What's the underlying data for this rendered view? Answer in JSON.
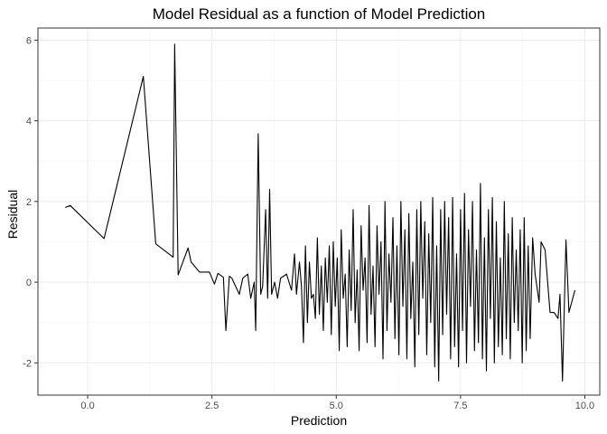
{
  "chart_data": {
    "type": "line",
    "title": "Model Residual as a function of Model Prediction",
    "xlabel": "Prediction",
    "ylabel": "Residual",
    "xlim": [
      -1.0,
      10.3
    ],
    "ylim": [
      -2.8,
      6.3
    ],
    "x_ticks": [
      0.0,
      2.5,
      5.0,
      7.5,
      10.0
    ],
    "x_tick_labels": [
      "0.0",
      "2.5",
      "5.0",
      "7.5",
      "10.0"
    ],
    "y_ticks": [
      -2,
      0,
      2,
      4,
      6
    ],
    "y_tick_labels": [
      "-2",
      "0",
      "2",
      "4",
      "6"
    ],
    "grid": true,
    "legend": "none",
    "colors": {
      "line": "#000000",
      "grid": "#ebebeb",
      "border": "#333333",
      "background": "#ffffff"
    },
    "series": [
      {
        "values_x": [
          -0.45,
          -0.35,
          0.33,
          1.12,
          1.37,
          1.72,
          1.75,
          1.82,
          2.02,
          2.08,
          2.25,
          2.45,
          2.55,
          2.62,
          2.73,
          2.78,
          2.85,
          2.9,
          3.05,
          3.12,
          3.22,
          3.28,
          3.35,
          3.38,
          3.43,
          3.48,
          3.52,
          3.58,
          3.62,
          3.66,
          3.7,
          3.76,
          3.82,
          3.88,
          4.0,
          4.1,
          4.16,
          4.2,
          4.26,
          4.3,
          4.34,
          4.38,
          4.42,
          4.46,
          4.5,
          4.54,
          4.58,
          4.62,
          4.66,
          4.7,
          4.74,
          4.78,
          4.82,
          4.86,
          4.9,
          4.94,
          4.98,
          5.02,
          5.06,
          5.1,
          5.14,
          5.18,
          5.22,
          5.26,
          5.3,
          5.34,
          5.38,
          5.42,
          5.46,
          5.5,
          5.54,
          5.58,
          5.62,
          5.66,
          5.7,
          5.74,
          5.78,
          5.82,
          5.86,
          5.9,
          5.94,
          5.98,
          6.02,
          6.06,
          6.1,
          6.14,
          6.18,
          6.22,
          6.26,
          6.3,
          6.34,
          6.38,
          6.42,
          6.46,
          6.5,
          6.54,
          6.58,
          6.62,
          6.66,
          6.7,
          6.74,
          6.78,
          6.82,
          6.86,
          6.9,
          6.94,
          6.98,
          7.02,
          7.06,
          7.1,
          7.14,
          7.18,
          7.22,
          7.26,
          7.3,
          7.34,
          7.38,
          7.42,
          7.46,
          7.5,
          7.54,
          7.58,
          7.62,
          7.66,
          7.7,
          7.74,
          7.78,
          7.82,
          7.86,
          7.9,
          7.94,
          7.98,
          8.02,
          8.06,
          8.1,
          8.14,
          8.18,
          8.22,
          8.26,
          8.3,
          8.34,
          8.38,
          8.42,
          8.46,
          8.5,
          8.54,
          8.58,
          8.62,
          8.66,
          8.7,
          8.74,
          8.78,
          8.82,
          8.86,
          8.9,
          8.95,
          9.0,
          9.08,
          9.12,
          9.2,
          9.3,
          9.38,
          9.46,
          9.5,
          9.55,
          9.62,
          9.68,
          9.8
        ],
        "values_y": [
          1.85,
          1.9,
          1.08,
          5.1,
          0.95,
          0.62,
          5.9,
          0.18,
          0.85,
          0.5,
          0.25,
          0.25,
          -0.05,
          0.22,
          0.12,
          -1.2,
          0.15,
          0.1,
          -0.3,
          0.1,
          0.2,
          -0.4,
          0.0,
          -1.2,
          3.68,
          -0.3,
          -0.1,
          1.8,
          -0.4,
          2.3,
          -0.3,
          0.0,
          -0.4,
          0.1,
          0.2,
          -0.2,
          0.7,
          -0.3,
          0.5,
          -0.1,
          -1.5,
          0.9,
          -1.0,
          0.5,
          -0.4,
          -0.3,
          -0.9,
          1.1,
          -0.8,
          0.4,
          -1.2,
          0.6,
          -0.5,
          0.9,
          -1.3,
          1.0,
          -0.6,
          0.6,
          -1.7,
          1.3,
          -0.4,
          0.2,
          -1.6,
          0.8,
          -0.7,
          1.8,
          -1.0,
          0.3,
          -1.7,
          1.4,
          -0.2,
          0.6,
          -1.5,
          1.9,
          -0.8,
          0.4,
          -1.6,
          1.4,
          -0.3,
          1.0,
          -1.9,
          2.0,
          -1.2,
          0.7,
          -0.5,
          1.6,
          -1.4,
          0.9,
          -1.8,
          2.0,
          -0.6,
          1.3,
          -1.9,
          1.7,
          -0.9,
          0.5,
          -2.1,
          1.8,
          -1.3,
          2.0,
          -0.4,
          1.5,
          -1.8,
          1.2,
          -1.0,
          2.1,
          -2.1,
          0.9,
          -2.45,
          1.8,
          -1.3,
          2.0,
          -0.8,
          1.6,
          -1.9,
          2.1,
          -1.6,
          0.7,
          -2.1,
          1.8,
          -1.2,
          2.2,
          -2.0,
          1.3,
          -0.6,
          2.0,
          -1.7,
          0.8,
          -1.5,
          2.45,
          -1.9,
          1.1,
          -2.2,
          1.8,
          -0.9,
          2.1,
          -2.0,
          1.5,
          -1.6,
          0.6,
          -1.8,
          2.0,
          -1.4,
          1.2,
          -1.9,
          1.6,
          -1.0,
          0.8,
          -1.2,
          1.3,
          -2.0,
          1.6,
          -1.7,
          0.9,
          -1.4,
          1.1,
          0.2,
          -0.5,
          1.0,
          0.8,
          -0.75,
          -0.75,
          -0.9,
          -0.3,
          -2.45,
          1.05,
          -0.75,
          -0.2
        ]
      }
    ]
  }
}
